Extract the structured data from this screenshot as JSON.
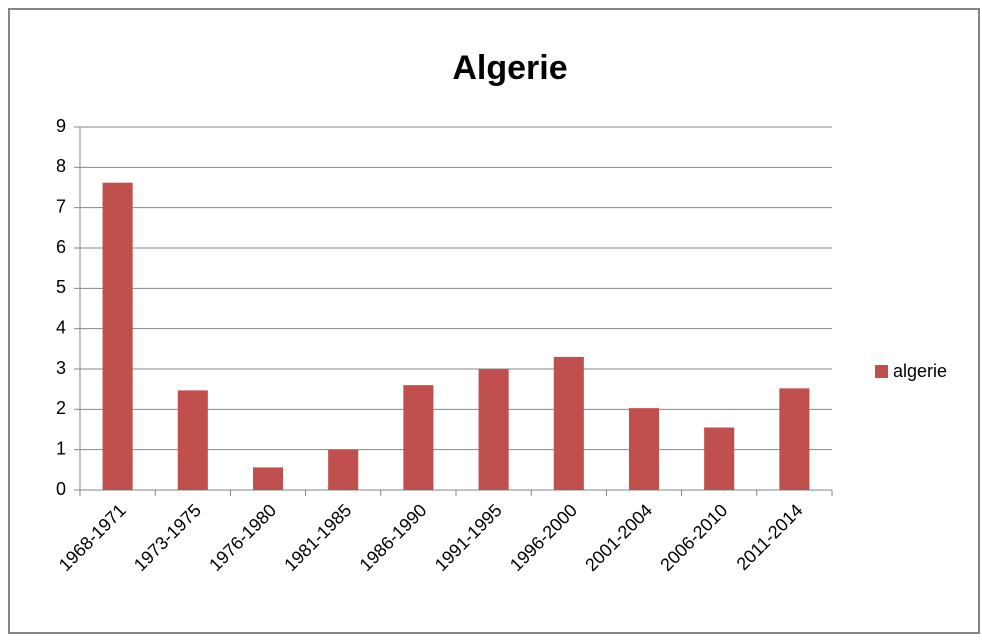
{
  "chart_data": {
    "type": "bar",
    "title": "Algerie",
    "categories": [
      "1968-1971",
      "1973-1975",
      "1976-1980",
      "1981-1985",
      "1986-1990",
      "1991-1995",
      "1996-2000",
      "2001-2004",
      "2006-2010",
      "2011-2014"
    ],
    "series": [
      {
        "name": "algerie",
        "color": "#c0504d",
        "values": [
          7.62,
          2.47,
          0.56,
          1.0,
          2.6,
          3.0,
          3.3,
          2.03,
          1.55,
          2.52
        ]
      }
    ],
    "ylim": [
      0,
      9
    ],
    "yticks": [
      0,
      1,
      2,
      3,
      4,
      5,
      6,
      7,
      8,
      9
    ],
    "grid": true,
    "legend": "right"
  }
}
